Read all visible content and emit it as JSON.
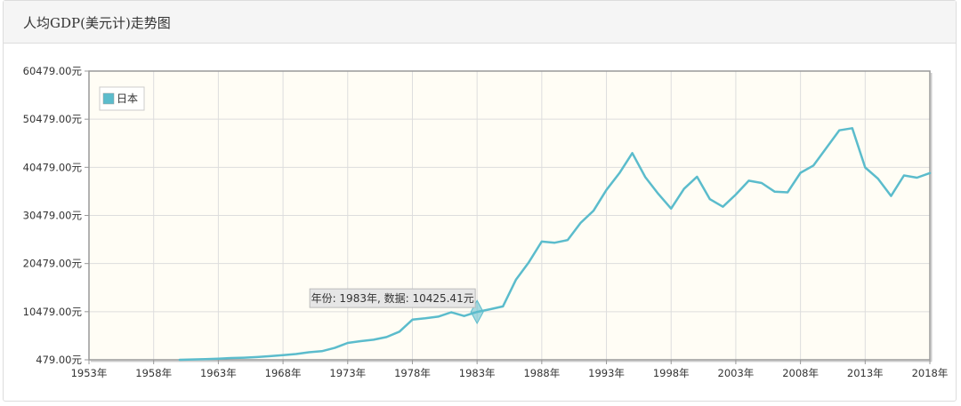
{
  "panel": {
    "title": "人均GDP(美元计)走势图"
  },
  "tooltip": {
    "text": "年份: 1983年, 数据: 10425.41元",
    "year": 1983,
    "value": 10425.41
  },
  "colors": {
    "series": "#5bbccc",
    "plot_bg": "#fffdf5",
    "grid": "#dddddd",
    "axis": "#999999"
  },
  "chart_data": {
    "type": "line",
    "title": "人均GDP(美元计)走势图",
    "xlabel": "",
    "ylabel": "",
    "xlim": [
      1953,
      2018
    ],
    "ylim": [
      479,
      60479
    ],
    "x_ticks": [
      1953,
      1958,
      1963,
      1968,
      1973,
      1978,
      1983,
      1988,
      1993,
      1998,
      2003,
      2008,
      2013,
      2018
    ],
    "x_tick_labels": [
      "1953年",
      "1958年",
      "1963年",
      "1968年",
      "1973年",
      "1978年",
      "1983年",
      "1988年",
      "1993年",
      "1998年",
      "2003年",
      "2008年",
      "2013年",
      "2018年"
    ],
    "y_ticks": [
      479,
      10479,
      20479,
      30479,
      40479,
      50479,
      60479
    ],
    "y_tick_labels": [
      "479.00元",
      "10479.00元",
      "20479.00元",
      "30479.00元",
      "40479.00元",
      "50479.00元",
      "60479.00元"
    ],
    "grid": true,
    "legend_position": "top-left",
    "series": [
      {
        "name": "日本",
        "x": [
          1960,
          1961,
          1962,
          1963,
          1964,
          1965,
          1966,
          1967,
          1968,
          1969,
          1970,
          1971,
          1972,
          1973,
          1974,
          1975,
          1976,
          1977,
          1978,
          1979,
          1980,
          1981,
          1982,
          1983,
          1984,
          1985,
          1986,
          1987,
          1988,
          1989,
          1990,
          1991,
          1992,
          1993,
          1994,
          1995,
          1996,
          1997,
          1998,
          1999,
          2000,
          2001,
          2002,
          2003,
          2004,
          2005,
          2006,
          2007,
          2008,
          2009,
          2010,
          2011,
          2012,
          2013,
          2014,
          2015,
          2016,
          2017,
          2018
        ],
        "values": [
          480,
          560,
          630,
          720,
          840,
          920,
          1060,
          1230,
          1450,
          1670,
          2040,
          2270,
          2950,
          3990,
          4350,
          4660,
          5200,
          6330,
          8820,
          9100,
          9460,
          10360,
          9580,
          10425,
          10980,
          11580,
          17110,
          20750,
          25050,
          24820,
          25360,
          28930,
          31460,
          35770,
          39270,
          43440,
          38440,
          34990,
          31900,
          36030,
          38530,
          33850,
          32290,
          34810,
          37690,
          37220,
          35430,
          35280,
          39340,
          40860,
          44510,
          48170,
          48600,
          40450,
          38110,
          34520,
          38790,
          38330,
          39290
        ]
      }
    ]
  }
}
